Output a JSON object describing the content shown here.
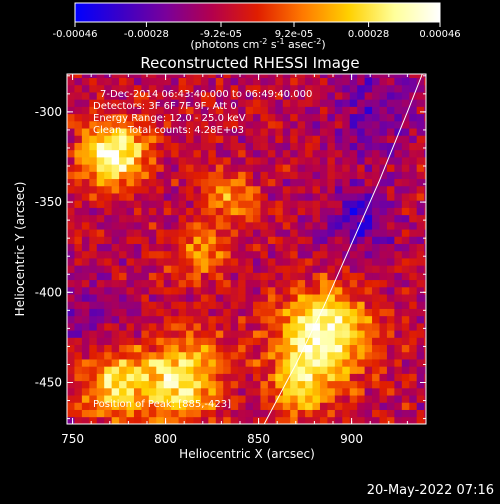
{
  "colorbar": {
    "ticks": [
      "-0.00046",
      "-0.00028",
      "-9.2e-05",
      "9.2e-05",
      "0.00028",
      "0.00046"
    ],
    "tick_values": [
      -0.00046,
      -0.00028,
      -9.2e-05,
      9.2e-05,
      0.00028,
      0.00046
    ],
    "range": [
      -0.00046,
      0.00046
    ],
    "units_prefix": "(photons cm",
    "units_exp1": "-2",
    "units_mid": " s",
    "units_exp2": "-1",
    "units_mid2": " asec",
    "units_exp3": "-2",
    "units_suffix": ")",
    "stops": [
      "#0000ff",
      "#3a00c8",
      "#7a009a",
      "#b3004d",
      "#e01e00",
      "#ff7a00",
      "#ffd000",
      "#ffff9a",
      "#ffffff"
    ]
  },
  "chart_data": {
    "type": "heatmap",
    "title": "Reconstructed RHESSI Image",
    "xlabel": "Heliocentric X (arcsec)",
    "ylabel": "Heliocentric Y (arcsec)",
    "xlim": [
      747,
      940
    ],
    "ylim": [
      -473,
      -279
    ],
    "xticks": [
      750,
      800,
      850,
      900
    ],
    "yticks": [
      -300,
      -350,
      -400,
      -450
    ],
    "annotations": [
      "7-Dec-2014 06:43:40.000 to 06:49:40.000",
      "Detectors: 3F 6F 7F 9F, Att 0",
      "Energy Range: 12.0 - 25.0 keV",
      "Clean.  Total counts: 4.28E+03"
    ],
    "position_label": "Position of Peak: [885,-423]",
    "peak": {
      "x": 885,
      "y": -423
    },
    "limb_points": [
      [
        853,
        -473
      ],
      [
        870,
        -440
      ],
      [
        885,
        -408
      ],
      [
        900,
        -373
      ],
      [
        915,
        -338
      ],
      [
        930,
        -300
      ],
      [
        938,
        -279
      ]
    ],
    "sources": [
      {
        "x": 772,
        "y": -323,
        "sigma": 12,
        "amp": 1.15
      },
      {
        "x": 885,
        "y": -423,
        "sigma": 17,
        "amp": 1.1
      },
      {
        "x": 808,
        "y": -448,
        "sigma": 16,
        "amp": 0.9
      },
      {
        "x": 772,
        "y": -452,
        "sigma": 13,
        "amp": 0.75
      },
      {
        "x": 835,
        "y": -350,
        "sigma": 10,
        "amp": 0.55
      },
      {
        "x": 818,
        "y": -378,
        "sigma": 11,
        "amp": 0.5
      },
      {
        "x": 873,
        "y": -453,
        "sigma": 12,
        "amp": 0.6
      },
      {
        "x": 905,
        "y": -360,
        "sigma": 13,
        "amp": -0.5
      },
      {
        "x": 910,
        "y": -300,
        "sigma": 18,
        "amp": -0.35
      },
      {
        "x": 755,
        "y": -410,
        "sigma": 14,
        "amp": -0.25
      }
    ],
    "background": -0.2
  },
  "footer": {
    "timestamp": "20-May-2022 07:16"
  }
}
